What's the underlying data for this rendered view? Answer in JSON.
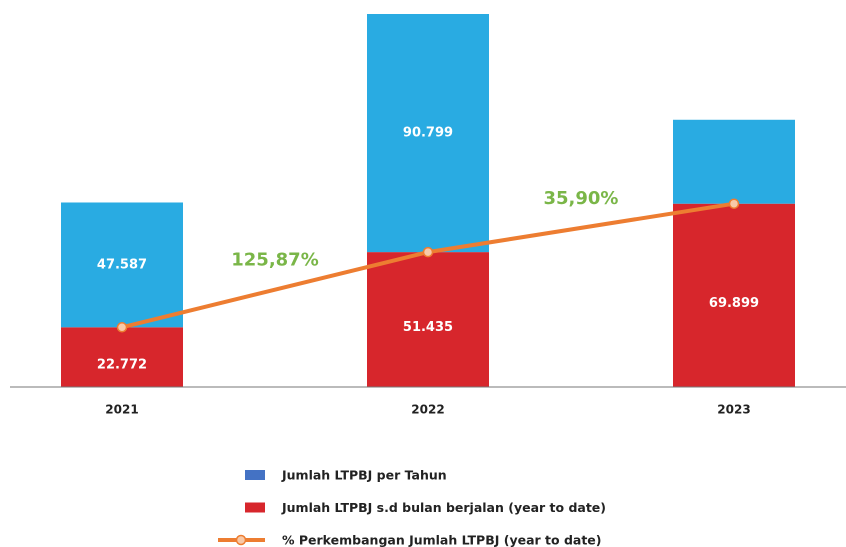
{
  "chart_data": {
    "type": "stacked-bar-line",
    "categories": [
      "2021",
      "2022",
      "2023"
    ],
    "series": [
      {
        "name": "Jumlah LTPBJ s.d bulan berjalan (year to date)",
        "color": "#d7262c",
        "values": [
          22772,
          51435,
          69899
        ],
        "value_labels": [
          "22.772",
          "51.435",
          "69.899"
        ]
      },
      {
        "name": "Jumlah LTPBJ per Tahun",
        "color": "#29abe2",
        "legend_color": "#4472c4",
        "values": [
          47587,
          90799,
          32000
        ],
        "value_labels": [
          "47.587",
          "90.799",
          null
        ]
      },
      {
        "name": "% Perkembangan Jumlah LTPBJ (year to date)",
        "color": "#ed7d31",
        "label_color": "#7ab648",
        "type": "line",
        "values": [
          null,
          125.87,
          35.9
        ],
        "value_labels": [
          null,
          "125,87%",
          "35,90%"
        ]
      }
    ],
    "legend_order": [
      1,
      0,
      2
    ]
  }
}
